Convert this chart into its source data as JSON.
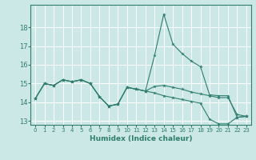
{
  "xlabel": "Humidex (Indice chaleur)",
  "background_color": "#cce8e6",
  "grid_color": "#ffffff",
  "line_color": "#2e7d6e",
  "xlim": [
    -0.5,
    23.5
  ],
  "ylim": [
    12.8,
    19.2
  ],
  "yticks": [
    13,
    14,
    15,
    16,
    17,
    18
  ],
  "xticks": [
    0,
    1,
    2,
    3,
    4,
    5,
    6,
    7,
    8,
    9,
    10,
    11,
    12,
    13,
    14,
    15,
    16,
    17,
    18,
    19,
    20,
    21,
    22,
    23
  ],
  "s1": [
    14.2,
    15.0,
    14.9,
    15.2,
    15.1,
    15.2,
    15.0,
    14.3,
    13.8,
    13.9,
    14.8,
    14.7,
    14.6,
    14.5,
    14.35,
    14.25,
    14.15,
    14.05,
    13.95,
    13.1,
    12.85,
    12.85,
    13.2,
    13.25
  ],
  "s2": [
    14.2,
    15.0,
    14.9,
    15.2,
    15.1,
    15.2,
    15.0,
    14.3,
    13.8,
    13.9,
    14.8,
    14.7,
    14.6,
    14.85,
    14.9,
    14.8,
    14.7,
    14.55,
    14.45,
    14.35,
    14.25,
    14.25,
    13.35,
    13.25
  ],
  "s3": [
    14.2,
    15.0,
    14.9,
    15.2,
    15.1,
    15.2,
    15.0,
    14.3,
    13.8,
    13.9,
    14.8,
    14.7,
    14.6,
    16.5,
    18.7,
    17.1,
    16.6,
    16.2,
    15.9,
    14.4,
    14.35,
    14.35,
    13.2,
    13.25
  ]
}
